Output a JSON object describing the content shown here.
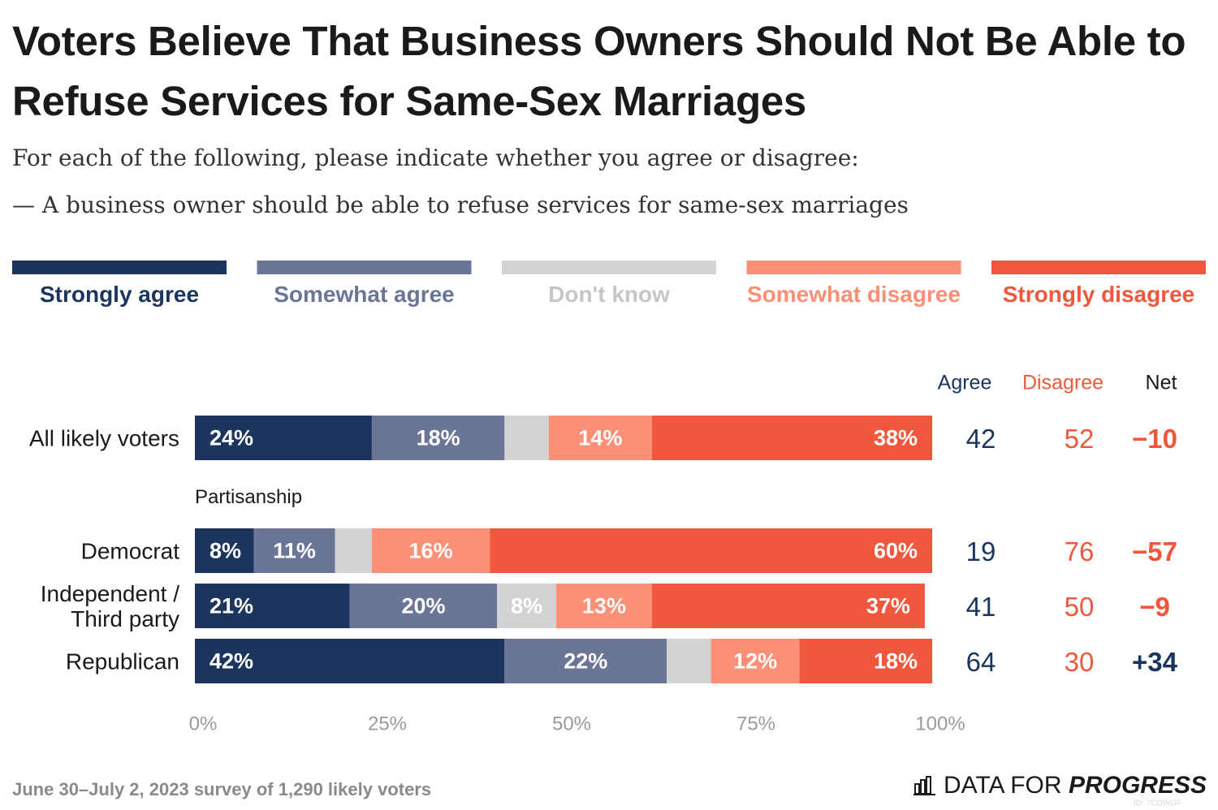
{
  "chart_data": {
    "type": "bar",
    "orientation": "horizontal",
    "stacked": true,
    "title": "Voters Believe That Business Owners Should Not Be Able to Refuse Services for Same-Sex Marriages",
    "subtitle": "For each of the following, please indicate whether you agree or disagree:",
    "question": "— A business owner should be able to refuse services for same-sex marriages",
    "categories": [
      "All likely voters",
      "Democrat",
      "Independent / Third party",
      "Republican"
    ],
    "group_label": "Partisanship",
    "series": [
      {
        "name": "Strongly agree",
        "color": "#1c355e",
        "values": [
          24,
          8,
          21,
          42
        ],
        "value_labels": [
          "24%",
          "8%",
          "21%",
          "42%"
        ]
      },
      {
        "name": "Somewhat agree",
        "color": "#6b7597",
        "values": [
          18,
          11,
          20,
          22
        ],
        "value_labels": [
          "18%",
          "11%",
          "20%",
          "22%"
        ]
      },
      {
        "name": "Don't know",
        "color": "#d3d3d5",
        "values": [
          6,
          5,
          8,
          6
        ],
        "value_labels": [
          null,
          null,
          "8%",
          null
        ]
      },
      {
        "name": "Somewhat disagree",
        "color": "#fd8f76",
        "values": [
          14,
          16,
          13,
          12
        ],
        "value_labels": [
          "14%",
          "16%",
          "13%",
          "12%"
        ]
      },
      {
        "name": "Strongly disagree",
        "color": "#f0573c",
        "values": [
          38,
          60,
          37,
          18
        ],
        "value_labels": [
          "38%",
          "60%",
          "37%",
          "18%"
        ]
      }
    ],
    "xlim": [
      0,
      100
    ],
    "xticks": [
      {
        "value": 0,
        "label": "0%"
      },
      {
        "value": 25,
        "label": "25%"
      },
      {
        "value": 50,
        "label": "50%"
      },
      {
        "value": 75,
        "label": "75%"
      },
      {
        "value": 100,
        "label": "100%"
      }
    ],
    "summary_columns": [
      {
        "name": "Agree",
        "color": "#1c355e",
        "values": [
          42,
          19,
          41,
          64
        ]
      },
      {
        "name": "Disagree",
        "color": "#f0573c",
        "values": [
          52,
          76,
          50,
          30
        ]
      },
      {
        "name": "Net",
        "values": [
          -10,
          -57,
          -9,
          34
        ],
        "value_labels": [
          "−10",
          "−57",
          "−9",
          "+34"
        ],
        "positive_color": "#1c355e",
        "negative_color": "#f0573c"
      }
    ]
  },
  "footer": {
    "source": "June 30–July 2, 2023 survey of 1,290 likely voters",
    "brand": [
      "DATA FOR",
      "PROGRESS"
    ],
    "id": "ID: 7CDWGF"
  }
}
